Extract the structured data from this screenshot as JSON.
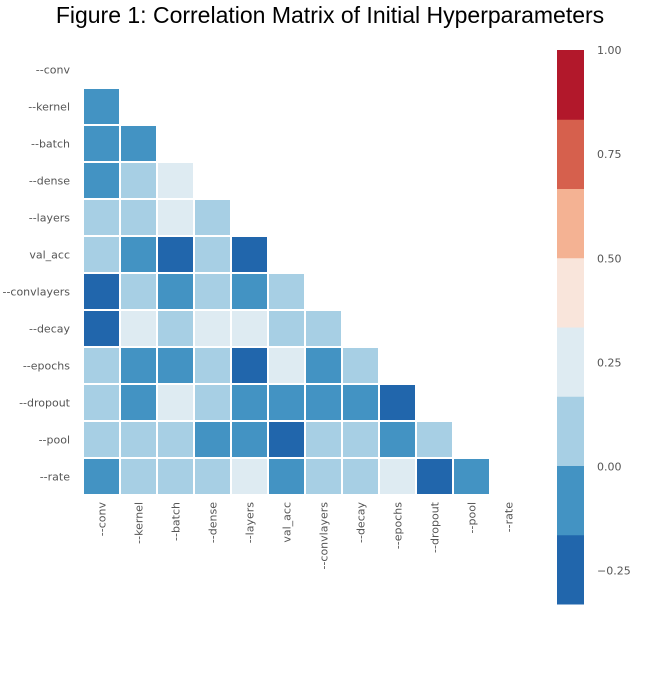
{
  "chart_data": {
    "type": "heatmap",
    "title": "Figure 1: Correlation Matrix of Initial Hyperparameters",
    "labels": [
      "--conv",
      "--kernel",
      "--batch",
      "--dense",
      "--layers",
      "val_acc",
      "--convlayers",
      "--decay",
      "--epochs",
      "--dropout",
      "--pool",
      "--rate"
    ],
    "mask": "lower-triangle",
    "matrix": [
      [],
      [
        -0.12
      ],
      [
        -0.12,
        -0.12
      ],
      [
        -0.12,
        0.1,
        0.3
      ],
      [
        0.1,
        0.1,
        0.3,
        0.1
      ],
      [
        0.1,
        -0.12,
        -0.3,
        0.1,
        -0.3
      ],
      [
        -0.3,
        0.1,
        -0.12,
        0.1,
        -0.12,
        0.1
      ],
      [
        -0.3,
        0.3,
        0.1,
        0.3,
        0.3,
        0.1,
        0.1
      ],
      [
        0.1,
        -0.12,
        -0.12,
        0.1,
        -0.3,
        0.3,
        -0.12,
        0.1
      ],
      [
        0.1,
        -0.12,
        0.3,
        0.1,
        -0.12,
        -0.12,
        -0.12,
        -0.12,
        -0.3
      ],
      [
        0.1,
        0.1,
        0.1,
        -0.12,
        -0.12,
        -0.3,
        0.1,
        0.1,
        -0.12,
        0.1
      ],
      [
        -0.12,
        0.1,
        0.1,
        0.1,
        0.3,
        -0.12,
        0.1,
        0.1,
        0.3,
        -0.3,
        -0.12
      ]
    ],
    "colorbar": {
      "min": -0.33,
      "max": 1.0,
      "ticks": [
        "1.00",
        "0.75",
        "0.50",
        "0.25",
        "0.00",
        "−0.25"
      ],
      "tick_values": [
        1.0,
        0.75,
        0.5,
        0.25,
        0.0,
        -0.25
      ],
      "colors": [
        "#2166ac",
        "#4393c3",
        "#a7cfe4",
        "#deebf2",
        "#f9e5db",
        "#f4b293",
        "#d6604d",
        "#b2182b"
      ]
    }
  }
}
